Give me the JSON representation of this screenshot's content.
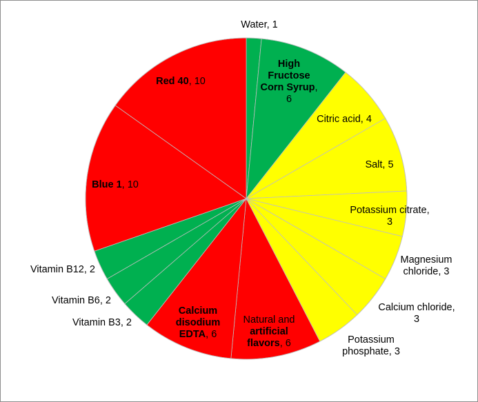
{
  "chart_data": {
    "type": "pie",
    "title": "",
    "start_angle": "top, clockwise",
    "legend": "none (data labels on slices)",
    "slices": [
      {
        "label": "Water",
        "value": 1,
        "color": "#00b050",
        "label_lines": [
          [
            {
              "t": "Water, 1",
              "bold": false
            }
          ]
        ]
      },
      {
        "label": "High Fructose Corn Syrup",
        "value": 6,
        "color": "#00b050",
        "label_lines": [
          [
            {
              "t": "High",
              "bold": true
            }
          ],
          [
            {
              "t": "Fructose",
              "bold": true
            }
          ],
          [
            {
              "t": "Corn Syrup",
              "bold": true
            },
            {
              "t": ",",
              "bold": false
            }
          ],
          [
            {
              "t": "6",
              "bold": false
            }
          ]
        ]
      },
      {
        "label": "Citric acid",
        "value": 4,
        "color": "#ffff00",
        "label_lines": [
          [
            {
              "t": "Citric acid, 4",
              "bold": false
            }
          ]
        ]
      },
      {
        "label": "Salt",
        "value": 5,
        "color": "#ffff00",
        "label_lines": [
          [
            {
              "t": "Salt, 5",
              "bold": false
            }
          ]
        ]
      },
      {
        "label": "Potassium citrate",
        "value": 3,
        "color": "#ffff00",
        "label_lines": [
          [
            {
              "t": "Potassium citrate,",
              "bold": false
            }
          ],
          [
            {
              "t": "3",
              "bold": false
            }
          ]
        ]
      },
      {
        "label": "Magnesium chloride",
        "value": 3,
        "color": "#ffff00",
        "label_lines": [
          [
            {
              "t": "Magnesium",
              "bold": false
            }
          ],
          [
            {
              "t": "chloride, 3",
              "bold": false
            }
          ]
        ]
      },
      {
        "label": "Calcium chloride",
        "value": 3,
        "color": "#ffff00",
        "label_lines": [
          [
            {
              "t": "Calcium chloride,",
              "bold": false
            }
          ],
          [
            {
              "t": "3",
              "bold": false
            }
          ]
        ]
      },
      {
        "label": "Potassium phosphate",
        "value": 3,
        "color": "#ffff00",
        "label_lines": [
          [
            {
              "t": "Potassium",
              "bold": false
            }
          ],
          [
            {
              "t": "phosphate, 3",
              "bold": false
            }
          ]
        ]
      },
      {
        "label": "Natural and artificial flavors",
        "value": 6,
        "color": "#ff0000",
        "label_lines": [
          [
            {
              "t": "Natural and",
              "bold": false
            }
          ],
          [
            {
              "t": "artificial",
              "bold": true
            }
          ],
          [
            {
              "t": "flavors",
              "bold": true
            },
            {
              "t": ", 6",
              "bold": false
            }
          ]
        ]
      },
      {
        "label": "Calcium disodium EDTA",
        "value": 6,
        "color": "#ff0000",
        "label_lines": [
          [
            {
              "t": "Calcium",
              "bold": true
            }
          ],
          [
            {
              "t": "disodium",
              "bold": true
            }
          ],
          [
            {
              "t": "EDTA",
              "bold": true
            },
            {
              "t": ", 6",
              "bold": false
            }
          ]
        ]
      },
      {
        "label": "Vitamin B3",
        "value": 2,
        "color": "#00b050",
        "label_lines": [
          [
            {
              "t": "Vitamin B3, 2",
              "bold": false
            }
          ]
        ]
      },
      {
        "label": "Vitamin B6",
        "value": 2,
        "color": "#00b050",
        "label_lines": [
          [
            {
              "t": "Vitamin B6, 2",
              "bold": false
            }
          ]
        ]
      },
      {
        "label": "Vitamin B12",
        "value": 2,
        "color": "#00b050",
        "label_lines": [
          [
            {
              "t": "Vitamin B12, 2",
              "bold": false
            }
          ]
        ]
      },
      {
        "label": "Blue 1",
        "value": 10,
        "color": "#ff0000",
        "label_lines": [
          [
            {
              "t": "Blue 1",
              "bold": true
            },
            {
              "t": ", 10",
              "bold": false
            }
          ]
        ]
      },
      {
        "label": "Red 40",
        "value": 10,
        "color": "#ff0000",
        "label_lines": [
          [
            {
              "t": "Red 40",
              "bold": true
            },
            {
              "t": ", 10",
              "bold": false
            }
          ]
        ]
      }
    ]
  }
}
